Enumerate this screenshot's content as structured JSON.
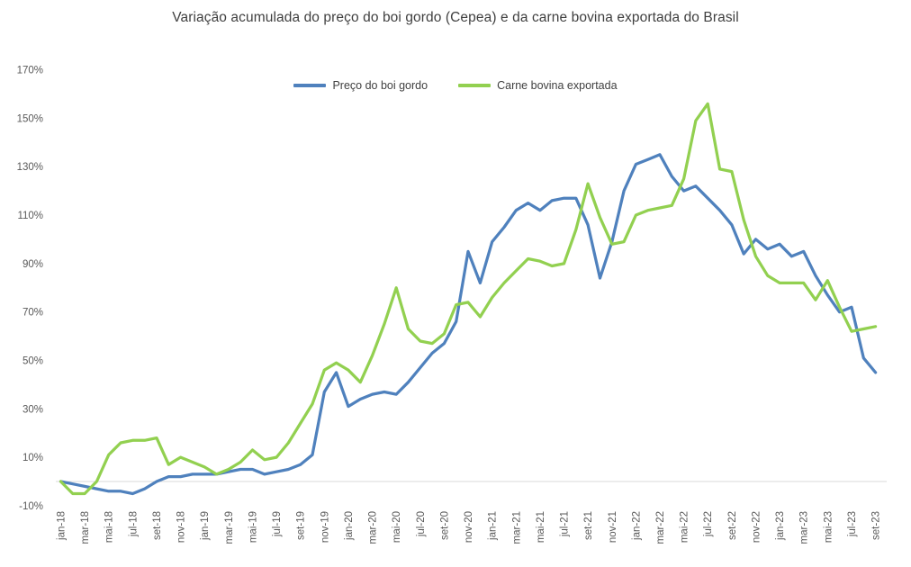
{
  "title": "Variação acumulada do preço do boi gordo (Cepea) e da carne bovina exportada do Brasil",
  "chart_data": {
    "type": "line",
    "title": "Variação acumulada do preço do boi gordo (Cepea) e da carne bovina exportada do Brasil",
    "x": [
      "jan-18",
      "fev-18",
      "mar-18",
      "abr-18",
      "mai-18",
      "jun-18",
      "jul-18",
      "ago-18",
      "set-18",
      "out-18",
      "nov-18",
      "dez-18",
      "jan-19",
      "fev-19",
      "mar-19",
      "abr-19",
      "mai-19",
      "jun-19",
      "jul-19",
      "ago-19",
      "set-19",
      "out-19",
      "nov-19",
      "dez-19",
      "jan-20",
      "fev-20",
      "mar-20",
      "abr-20",
      "mai-20",
      "jun-20",
      "jul-20",
      "ago-20",
      "set-20",
      "out-20",
      "nov-20",
      "dez-20",
      "jan-21",
      "fev-21",
      "mar-21",
      "abr-21",
      "mai-21",
      "jun-21",
      "jul-21",
      "ago-21",
      "set-21",
      "out-21",
      "nov-21",
      "dez-21",
      "jan-22",
      "fev-22",
      "mar-22",
      "abr-22",
      "mai-22",
      "jun-22",
      "jul-22",
      "ago-22",
      "set-22",
      "out-22",
      "nov-22",
      "dez-22",
      "jan-23",
      "fev-23",
      "mar-23",
      "abr-23",
      "mai-23",
      "jun-23",
      "jul-23",
      "ago-23",
      "set-23"
    ],
    "xtick_every": 2,
    "xtick_rotation": -90,
    "series": [
      {
        "name": "Preço do boi gordo",
        "color": "#4F81BD",
        "values": [
          0,
          -1,
          -2,
          -3,
          -4,
          -4,
          -5,
          -3,
          0,
          2,
          2,
          3,
          3,
          3,
          4,
          5,
          5,
          3,
          4,
          5,
          7,
          11,
          37,
          45,
          31,
          34,
          36,
          37,
          36,
          41,
          47,
          53,
          57,
          66,
          95,
          82,
          99,
          105,
          112,
          115,
          112,
          116,
          117,
          117,
          106,
          84,
          99,
          120,
          131,
          133,
          135,
          126,
          120,
          122,
          117,
          112,
          106,
          94,
          100,
          96,
          98,
          93,
          95,
          85,
          77,
          70,
          72,
          51,
          45
        ]
      },
      {
        "name": "Carne bovina exportada",
        "color": "#92D050",
        "values": [
          0,
          -5,
          -5,
          0,
          11,
          16,
          17,
          17,
          18,
          7,
          10,
          8,
          6,
          3,
          5,
          8,
          13,
          9,
          10,
          16,
          24,
          32,
          46,
          49,
          46,
          41,
          52,
          65,
          80,
          63,
          58,
          57,
          61,
          73,
          74,
          68,
          76,
          82,
          87,
          92,
          91,
          89,
          90,
          104,
          123,
          109,
          98,
          99,
          110,
          112,
          113,
          114,
          125,
          149,
          156,
          129,
          128,
          108,
          93,
          85,
          82,
          82,
          82,
          75,
          83,
          72,
          62,
          63,
          64
        ]
      }
    ],
    "ylabel": "",
    "xlabel": "",
    "ylim": [
      -10,
      170
    ],
    "ytick_step": 20,
    "ytick_suffix": "%",
    "yticks": [
      "-10%",
      "10%",
      "30%",
      "50%",
      "70%",
      "90%",
      "110%",
      "130%",
      "150%",
      "170%"
    ],
    "grid": "zero-line-only",
    "zero_line_color": "#D9D9D9",
    "axis_text_color": "#595959",
    "legend_position": "top-center",
    "line_width": 3.25
  }
}
